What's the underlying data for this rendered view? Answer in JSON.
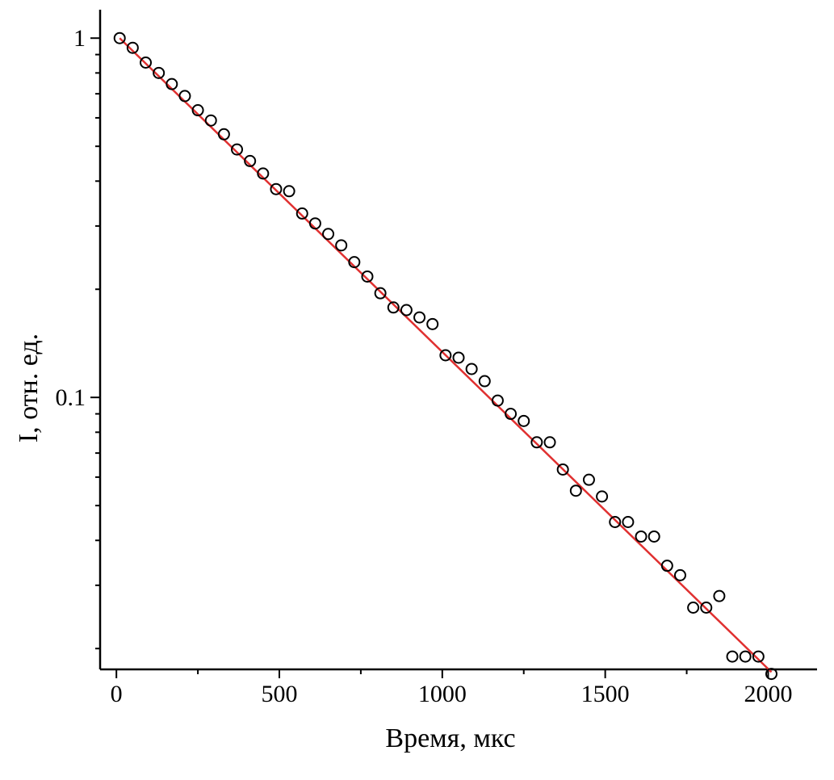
{
  "chart_data": {
    "type": "scatter",
    "xlabel": "Время, мкс",
    "ylabel": "I, отн. ед.",
    "xlim": [
      -50,
      2150
    ],
    "ylim": [
      0.0175,
      1.2
    ],
    "yscale": "log",
    "x_ticks": [
      0,
      500,
      1000,
      1500,
      2000
    ],
    "y_ticks": [
      0.1,
      1
    ],
    "grid": false,
    "legend": "none",
    "colors": {
      "points": "#000000",
      "fit": "#e03030",
      "axis": "#000000"
    },
    "series": [
      {
        "kind": "points",
        "marker": "open-circle",
        "x": [
          10,
          50,
          90,
          130,
          170,
          210,
          250,
          290,
          330,
          370,
          410,
          450,
          490,
          530,
          570,
          610,
          650,
          690,
          730,
          770,
          810,
          850,
          890,
          930,
          970,
          1010,
          1050,
          1090,
          1130,
          1170,
          1210,
          1250,
          1290,
          1330,
          1370,
          1410,
          1450,
          1490,
          1530,
          1570,
          1610,
          1650,
          1690,
          1730,
          1770,
          1810,
          1850,
          1890,
          1930,
          1970,
          2010
        ],
        "y": [
          1.0,
          0.94,
          0.855,
          0.8,
          0.745,
          0.69,
          0.63,
          0.59,
          0.54,
          0.49,
          0.455,
          0.42,
          0.38,
          0.375,
          0.325,
          0.305,
          0.285,
          0.265,
          0.238,
          0.217,
          0.195,
          0.178,
          0.175,
          0.167,
          0.16,
          0.131,
          0.129,
          0.12,
          0.111,
          0.098,
          0.09,
          0.086,
          0.075,
          0.075,
          0.063,
          0.055,
          0.059,
          0.053,
          0.045,
          0.045,
          0.041,
          0.041,
          0.034,
          0.032,
          0.026,
          0.026,
          0.028,
          0.019,
          0.019,
          0.019,
          0.017
        ]
      },
      {
        "kind": "fit-line",
        "x": [
          10,
          2010
        ],
        "y": [
          1.0,
          0.0172
        ]
      }
    ]
  }
}
